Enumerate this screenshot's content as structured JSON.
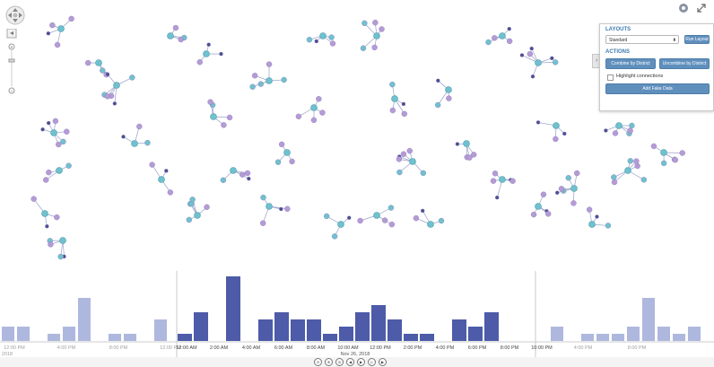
{
  "colors": {
    "node_teal": "#6fc1cf",
    "node_purple": "#b59bd6",
    "node_dark": "#4a4f93",
    "link": "#9aa1c9",
    "bar_active": "#4d5ba8",
    "bar_inactive": "#aeb8de",
    "panel_accent": "#3d78b1",
    "button": "#5f8fbd"
  },
  "panel": {
    "layouts_title": "LAYOUTS",
    "layout_selected": "Standard",
    "run_layout_label": "Run Layout",
    "actions_title": "ACTIONS",
    "combine_label": "Combine by District",
    "uncombine_label": "Uncombine by District",
    "highlight_label": "Highlight connections",
    "add_fake_label": "Add Fake Data"
  },
  "timebar": {
    "left_labels": [
      "12:00 PM",
      "4:00 PM",
      "8:00 PM",
      "12:00 PM"
    ],
    "left_date": "2018",
    "main_labels": [
      "12:00 AM",
      "2:00 AM",
      "4:00 AM",
      "6:00 AM",
      "8:00 AM",
      "10:00 AM",
      "12:00 PM",
      "2:00 PM",
      "4:00 PM",
      "6:00 PM",
      "8:00 PM",
      "10:00 PM"
    ],
    "main_date": "Nov 26, 2018",
    "right_labels": [
      "4:00 PM",
      "8:00 PM"
    ],
    "left_values": [
      2,
      2,
      0,
      1,
      2,
      6,
      0,
      1,
      1,
      0,
      3
    ],
    "main_values": [
      1,
      4,
      0,
      9,
      0,
      3,
      4,
      3,
      3,
      1,
      2,
      4,
      5,
      3,
      1,
      1,
      0,
      3,
      2,
      4
    ],
    "right_values": [
      2,
      0,
      1,
      1,
      1,
      2,
      6,
      2,
      1,
      2
    ]
  },
  "icons": {
    "nav": "pan-control-icon",
    "zoom": "zoom-slider-icon",
    "help": "help-icon",
    "expand": "expand-icon"
  }
}
